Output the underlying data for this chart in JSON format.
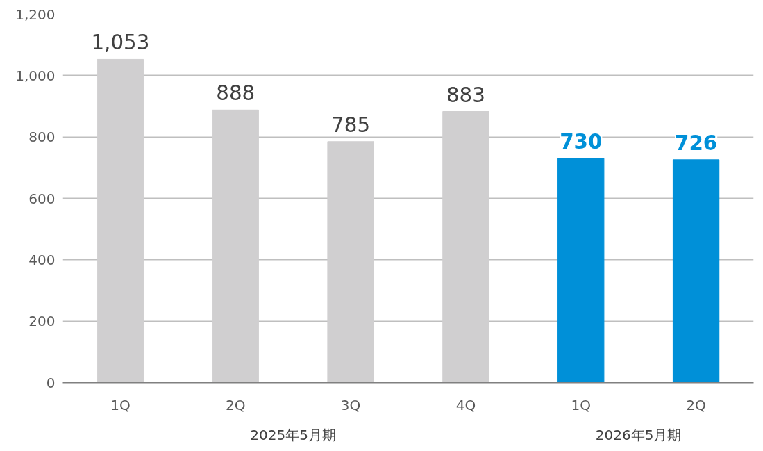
{
  "chart_data": {
    "type": "bar",
    "categories": [
      "1Q",
      "2Q",
      "3Q",
      "4Q",
      "1Q",
      "2Q"
    ],
    "values": [
      1053,
      888,
      785,
      883,
      730,
      726
    ],
    "colors": [
      "#d0cfd0",
      "#d0cfd0",
      "#d0cfd0",
      "#d0cfd0",
      "#0090d8",
      "#0090d8"
    ],
    "value_labels": [
      "1,053",
      "888",
      "785",
      "883",
      "730",
      "726"
    ],
    "annotations": [
      "2025年5月期",
      "2026年5月期"
    ],
    "ylim": [
      0,
      1200
    ],
    "yticks": [
      0,
      200,
      400,
      600,
      800,
      {
        "value": 1000,
        "label": "1,000"
      },
      {
        "value": 1200,
        "label": "1,200"
      }
    ],
    "grid": "y"
  }
}
